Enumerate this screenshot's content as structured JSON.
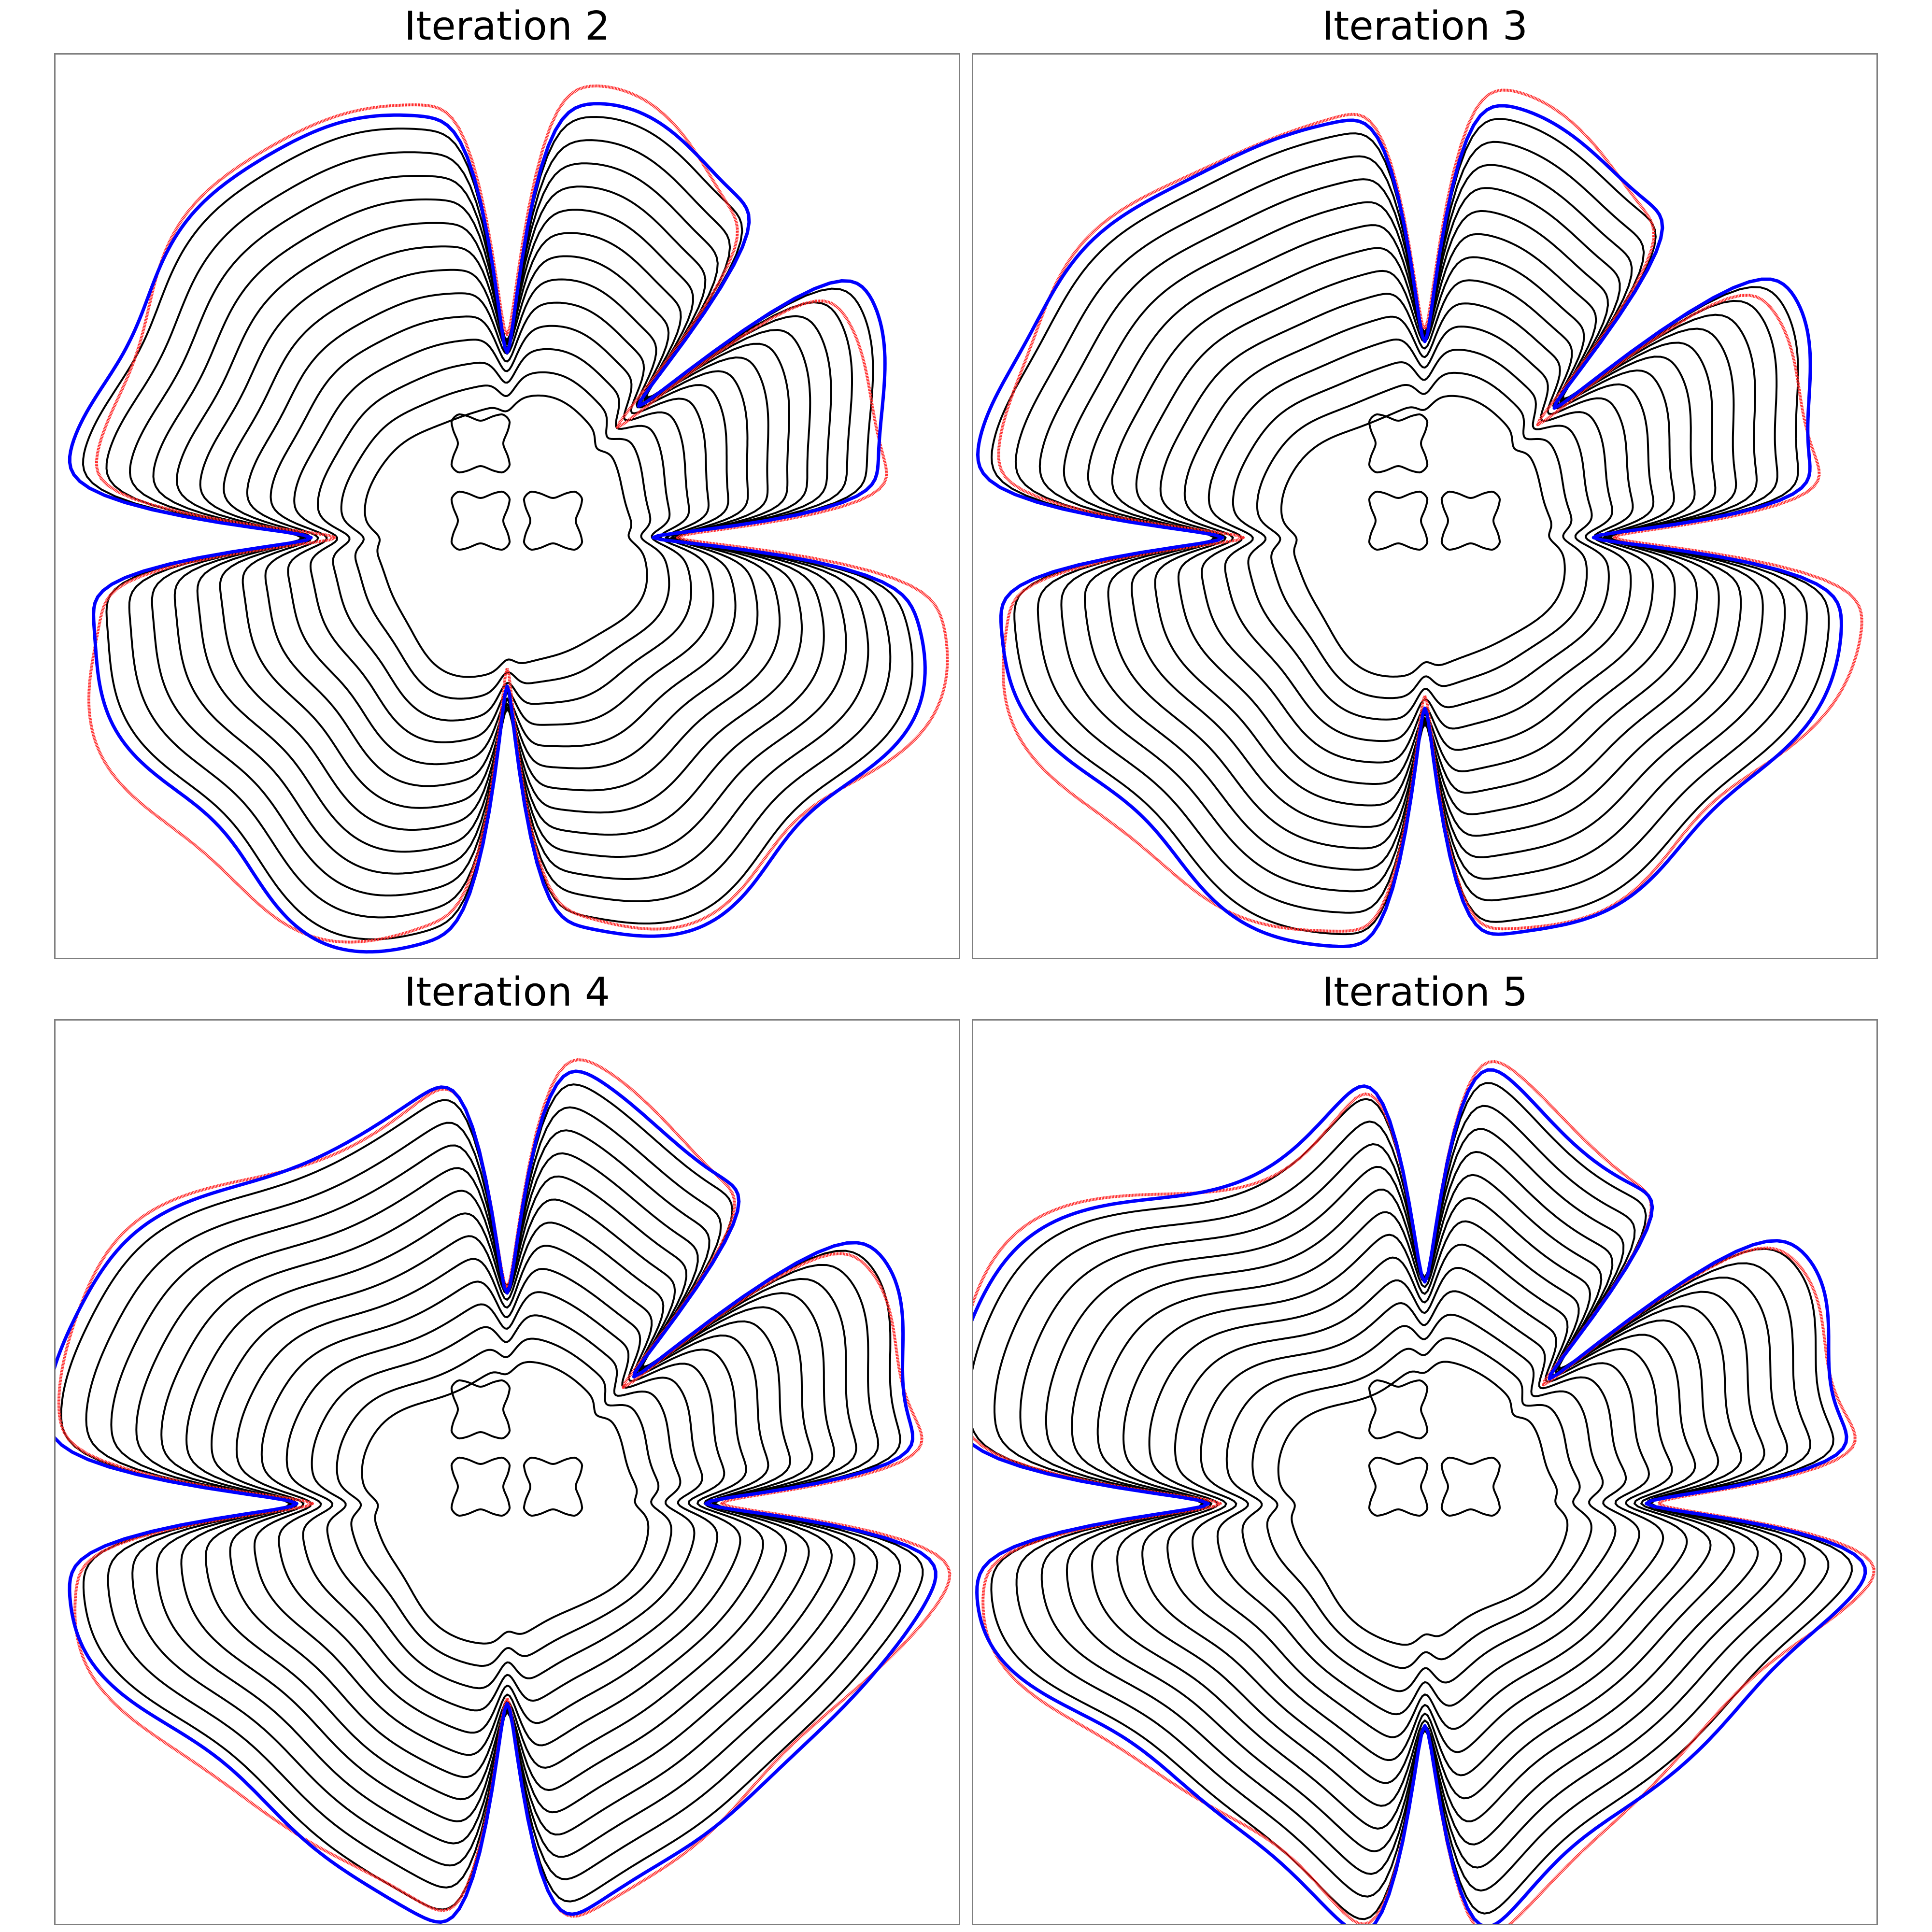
{
  "colors": {
    "contour": "#000000",
    "current_boundary": "#0000ff",
    "target_boundary": "#ff2a2a",
    "frame": "#7f7f7f"
  },
  "panels": [
    {
      "title": "Iteration 2",
      "level": 0.0
    },
    {
      "title": "Iteration 3",
      "level": 0.3
    },
    {
      "title": "Iteration 4",
      "level": 0.7
    },
    {
      "title": "Iteration 5",
      "level": 1.0
    }
  ]
}
